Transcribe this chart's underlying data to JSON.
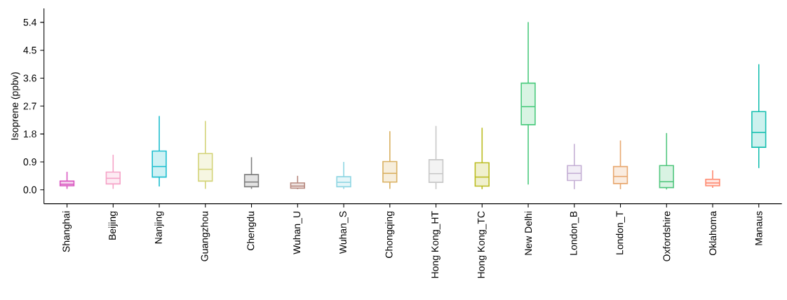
{
  "chart_data": {
    "type": "box",
    "ylabel": "Isoprene (ppbv)",
    "categories": [
      "Shanghai",
      "Beijing",
      "Nanjing",
      "Guangzhou",
      "Chengdu",
      "Wuhan_U",
      "Wuhan_S",
      "Chongqing",
      "Hong Kong_HT",
      "Hong Kong_TC",
      "New Delhi",
      "London_B",
      "London_T",
      "Oxfordshire",
      "Oklahoma",
      "Manaus"
    ],
    "colors": [
      "#d957c0",
      "#f5a3c7",
      "#1fbfcf",
      "#d4d47a",
      "#7f7f7f",
      "#b88a80",
      "#8fd6e3",
      "#d9b060",
      "#c8c8c8",
      "#bcbd22",
      "#4ccb7f",
      "#c5b0d5",
      "#e8a870",
      "#52c77f",
      "#ff8a70",
      "#17bfb0"
    ],
    "boxes": [
      {
        "low": 0.03,
        "q1": 0.13,
        "median": 0.18,
        "q3": 0.28,
        "high": 0.58
      },
      {
        "low": 0.03,
        "q1": 0.19,
        "median": 0.37,
        "q3": 0.57,
        "high": 1.13
      },
      {
        "low": 0.11,
        "q1": 0.41,
        "median": 0.75,
        "q3": 1.25,
        "high": 2.38
      },
      {
        "low": 0.03,
        "q1": 0.28,
        "median": 0.66,
        "q3": 1.17,
        "high": 2.22
      },
      {
        "low": 0.03,
        "q1": 0.1,
        "median": 0.25,
        "q3": 0.49,
        "high": 1.05
      },
      {
        "low": 0.02,
        "q1": 0.05,
        "median": 0.12,
        "q3": 0.22,
        "high": 0.45
      },
      {
        "low": 0.03,
        "q1": 0.1,
        "median": 0.24,
        "q3": 0.42,
        "high": 0.9
      },
      {
        "low": 0.03,
        "q1": 0.25,
        "median": 0.53,
        "q3": 0.91,
        "high": 1.89
      },
      {
        "low": 0.02,
        "q1": 0.24,
        "median": 0.52,
        "q3": 0.97,
        "high": 2.06
      },
      {
        "low": 0.02,
        "q1": 0.12,
        "median": 0.41,
        "q3": 0.87,
        "high": 2.0
      },
      {
        "low": 0.17,
        "q1": 2.1,
        "median": 2.68,
        "q3": 3.44,
        "high": 5.41
      },
      {
        "low": 0.02,
        "q1": 0.3,
        "median": 0.53,
        "q3": 0.78,
        "high": 1.48
      },
      {
        "low": 0.02,
        "q1": 0.2,
        "median": 0.43,
        "q3": 0.75,
        "high": 1.59
      },
      {
        "low": 0.01,
        "q1": 0.07,
        "median": 0.26,
        "q3": 0.78,
        "high": 1.83
      },
      {
        "low": 0.06,
        "q1": 0.13,
        "median": 0.22,
        "q3": 0.34,
        "high": 0.63
      },
      {
        "low": 0.7,
        "q1": 1.37,
        "median": 1.85,
        "q3": 2.52,
        "high": 4.05
      }
    ],
    "ylim": [
      -0.45,
      5.85
    ],
    "yticks": [
      {
        "value": 0,
        "label": "0.0"
      },
      0.9,
      1.8,
      2.7,
      3.6,
      4.5,
      5.4
    ]
  }
}
